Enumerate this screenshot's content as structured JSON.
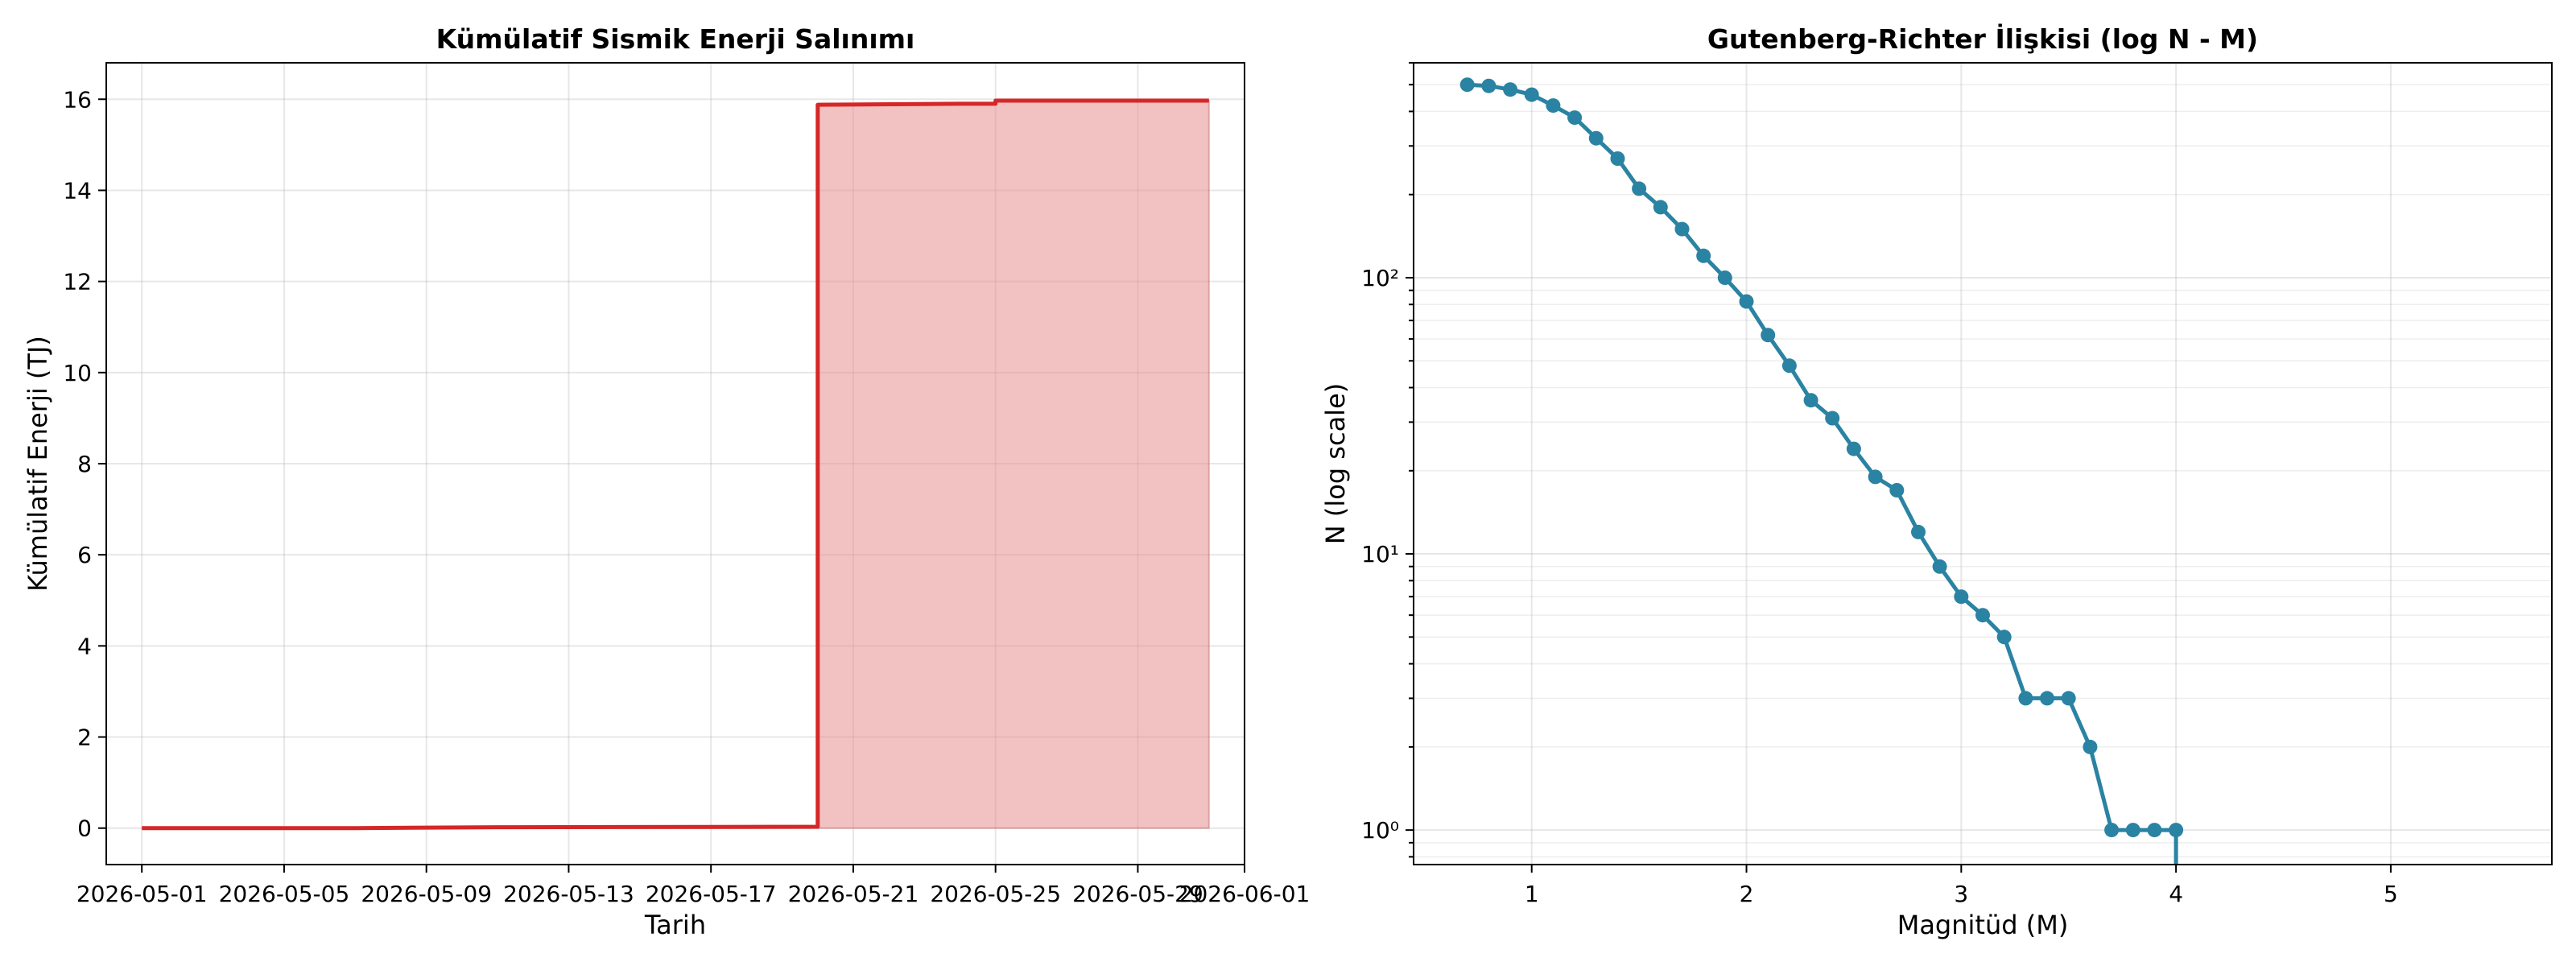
{
  "chart_data": [
    {
      "type": "area",
      "title": "Kümülatif Sismik Enerji Salınımı",
      "xlabel": "Tarih",
      "ylabel": "Kümülatif Enerji (TJ)",
      "x_ticks": [
        "2026-05-01",
        "2026-05-05",
        "2026-05-09",
        "2026-05-13",
        "2026-05-17",
        "2026-05-21",
        "2026-05-25",
        "2026-05-29",
        "2026-06-01"
      ],
      "xlim": [
        "2026-04-30",
        "2026-06-01"
      ],
      "ylim": [
        -0.8,
        16.8
      ],
      "y_ticks": [
        0,
        2,
        4,
        6,
        8,
        10,
        12,
        14,
        16
      ],
      "grid": true,
      "color": "#d62728",
      "fill_color": "#e88e8e",
      "series": [
        {
          "x": [
            "2026-05-01",
            "2026-05-07",
            "2026-05-11",
            "2026-05-20",
            "2026-05-20",
            "2026-05-20",
            "2026-05-24",
            "2026-05-25",
            "2026-05-25",
            "2026-05-31"
          ],
          "values": [
            0.0,
            0.0,
            0.02,
            0.03,
            0.03,
            15.88,
            15.9,
            15.9,
            15.97,
            15.97
          ]
        }
      ]
    },
    {
      "type": "line",
      "title": "Gutenberg-Richter İlişkisi (log N - M)",
      "xlabel": "Magnitüd (M)",
      "ylabel": "N (log scale)",
      "xlim": [
        0.45,
        5.75
      ],
      "ylim": [
        0.75,
        600
      ],
      "y_scale": "log",
      "x_ticks": [
        1,
        2,
        3,
        4,
        5
      ],
      "y_ticks": [
        "10⁰",
        "10¹",
        "10²"
      ],
      "grid": true,
      "color": "#2a83a2",
      "series": [
        {
          "x": [
            0.7,
            0.8,
            0.9,
            1.0,
            1.1,
            1.2,
            1.3,
            1.4,
            1.5,
            1.6,
            1.7,
            1.8,
            1.9,
            2.0,
            2.1,
            2.2,
            2.3,
            2.4,
            2.5,
            2.6,
            2.7,
            2.8,
            2.9,
            3.0,
            3.1,
            3.2,
            3.3,
            3.4,
            3.5,
            3.6,
            3.7,
            3.8,
            3.9,
            4.0
          ],
          "values": [
            500,
            495,
            480,
            460,
            420,
            380,
            320,
            270,
            210,
            180,
            150,
            120,
            100,
            82,
            62,
            48,
            36,
            31,
            24,
            19,
            17,
            12,
            9,
            7,
            6,
            5,
            3,
            3,
            3,
            2,
            1,
            1,
            1,
            1
          ]
        }
      ]
    }
  ]
}
